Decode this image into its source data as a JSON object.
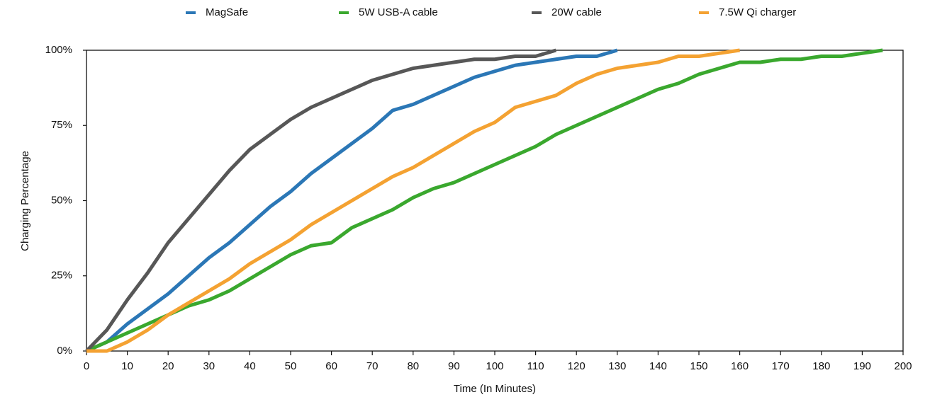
{
  "chart_data": {
    "type": "line",
    "x_label": "Time (In Minutes)",
    "y_label": "Charging Percentage",
    "x": [
      0,
      5,
      10,
      15,
      20,
      25,
      30,
      35,
      40,
      45,
      50,
      55,
      60,
      65,
      70,
      75,
      80,
      85,
      90,
      95,
      100,
      105,
      110,
      115,
      120,
      125,
      130,
      135,
      140,
      145,
      150,
      155,
      160,
      165,
      170,
      175,
      180,
      185,
      190,
      195
    ],
    "series": [
      {
        "name": "MagSafe",
        "color": "#2b77b6",
        "values": [
          0,
          3,
          9,
          14,
          19,
          25,
          31,
          36,
          42,
          48,
          53,
          59,
          64,
          69,
          74,
          80,
          82,
          85,
          88,
          91,
          93,
          95,
          96,
          97,
          98,
          98,
          100,
          null,
          null,
          null,
          null,
          null,
          null,
          null,
          null,
          null,
          null,
          null,
          null,
          null
        ]
      },
      {
        "name": "5W USB-A cable",
        "color": "#3aa82e",
        "values": [
          0,
          3,
          6,
          9,
          12,
          15,
          17,
          20,
          24,
          28,
          32,
          35,
          36,
          41,
          44,
          47,
          51,
          54,
          56,
          59,
          62,
          65,
          68,
          72,
          75,
          78,
          81,
          84,
          87,
          89,
          92,
          94,
          96,
          96,
          97,
          97,
          98,
          98,
          99,
          100
        ]
      },
      {
        "name": "20W cable",
        "color": "#575757",
        "values": [
          0,
          7,
          17,
          26,
          36,
          44,
          52,
          60,
          67,
          72,
          77,
          81,
          84,
          87,
          90,
          92,
          94,
          95,
          96,
          97,
          97,
          98,
          98,
          100,
          null,
          null,
          null,
          null,
          null,
          null,
          null,
          null,
          null,
          null,
          null,
          null,
          null,
          null,
          null,
          null
        ]
      },
      {
        "name": "7.5W Qi charger",
        "color": "#f4a232",
        "values": [
          0,
          0,
          3,
          7,
          12,
          16,
          20,
          24,
          29,
          33,
          37,
          42,
          46,
          50,
          54,
          58,
          61,
          65,
          69,
          73,
          76,
          81,
          83,
          85,
          89,
          92,
          94,
          95,
          96,
          98,
          98,
          99,
          100,
          null,
          null,
          null,
          null,
          null,
          null,
          null
        ]
      }
    ],
    "xlim": [
      0,
      200
    ],
    "xticks": [
      0,
      10,
      20,
      30,
      40,
      50,
      60,
      70,
      80,
      90,
      100,
      110,
      120,
      130,
      140,
      150,
      160,
      170,
      180,
      190,
      200
    ],
    "ylim": [
      0,
      100
    ],
    "yticks": [
      {
        "value": 0,
        "label": "0%"
      },
      {
        "value": 25,
        "label": "25%"
      },
      {
        "value": 50,
        "label": "50%"
      },
      {
        "value": 75,
        "label": "75%"
      },
      {
        "value": 100,
        "label": "100%"
      }
    ],
    "grid": false,
    "legend": "top"
  }
}
